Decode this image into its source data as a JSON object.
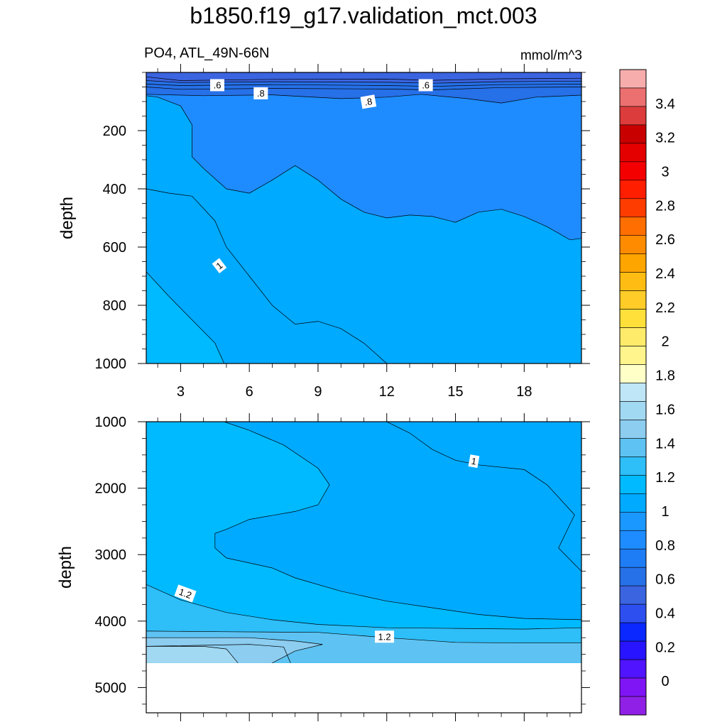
{
  "title": "b1850.f19_g17.validation_mct.003",
  "variable": "PO4, ATL_49N-66N",
  "units": "mmol/m^3",
  "chart_data": [
    {
      "type": "contour",
      "panel": "upper",
      "ylabel": "depth",
      "xticks": [
        "3",
        "6",
        "9",
        "12",
        "15",
        "18"
      ],
      "x_tick_values": [
        3,
        6,
        9,
        12,
        15,
        18
      ],
      "yticks": [
        "200",
        "400",
        "600",
        "800",
        "1000"
      ],
      "y_tick_values": [
        200,
        400,
        600,
        800,
        1000
      ],
      "xlim": [
        1.5,
        20.5
      ],
      "ylim": [
        0,
        1000
      ],
      "y_reversed": true,
      "contour_labels": [
        ".6",
        ".8",
        ".8",
        ".6",
        "1"
      ],
      "contour_lines": [
        [
          [
            1.5,
            15
          ],
          [
            3,
            28
          ],
          [
            7,
            24
          ],
          [
            12,
            23
          ],
          [
            14,
            27
          ],
          [
            17,
            22
          ],
          [
            20.5,
            20
          ]
        ],
        [
          [
            1.5,
            28
          ],
          [
            3,
            35
          ],
          [
            7,
            32
          ],
          [
            12,
            34
          ],
          [
            14,
            37
          ],
          [
            17,
            32
          ],
          [
            20.5,
            30
          ]
        ],
        [
          [
            1.5,
            40
          ],
          [
            3,
            45
          ],
          [
            7,
            42
          ],
          [
            12,
            45
          ],
          [
            14,
            48
          ],
          [
            17,
            42
          ],
          [
            20.5,
            40
          ]
        ],
        [
          [
            1.5,
            50
          ],
          [
            3,
            58
          ],
          [
            7,
            55
          ],
          [
            12,
            57
          ],
          [
            14,
            60
          ],
          [
            17,
            52
          ],
          [
            20.5,
            50
          ]
        ],
        [
          [
            1.5,
            75
          ],
          [
            4,
            80
          ],
          [
            7,
            77
          ],
          [
            10,
            90
          ],
          [
            12,
            85
          ],
          [
            13.5,
            75
          ],
          [
            15.5,
            90
          ],
          [
            17,
            105
          ],
          [
            18.5,
            85
          ],
          [
            20.5,
            78
          ]
        ],
        [
          [
            1.5,
            80
          ],
          [
            2,
            85
          ],
          [
            3,
            115
          ],
          [
            3.5,
            180
          ],
          [
            3.5,
            290
          ],
          [
            4,
            330
          ],
          [
            5,
            400
          ],
          [
            6,
            415
          ],
          [
            7,
            370
          ],
          [
            8,
            320
          ],
          [
            9,
            370
          ],
          [
            10,
            435
          ],
          [
            11,
            480
          ],
          [
            12,
            500
          ],
          [
            13,
            490
          ],
          [
            14,
            495
          ],
          [
            15,
            515
          ],
          [
            16,
            480
          ],
          [
            17,
            470
          ],
          [
            18,
            495
          ],
          [
            19,
            530
          ],
          [
            20,
            575
          ],
          [
            20.5,
            570
          ]
        ],
        [
          [
            1.5,
            400
          ],
          [
            2.5,
            415
          ],
          [
            3.5,
            425
          ],
          [
            4.5,
            510
          ],
          [
            5,
            600
          ],
          [
            6,
            700
          ],
          [
            7,
            800
          ],
          [
            8,
            865
          ],
          [
            9,
            855
          ],
          [
            10,
            880
          ],
          [
            11,
            930
          ],
          [
            12,
            1000
          ]
        ],
        [
          [
            1.5,
            685
          ],
          [
            2.5,
            770
          ],
          [
            3.5,
            850
          ],
          [
            4.5,
            930
          ],
          [
            4.9,
            1000
          ]
        ]
      ]
    },
    {
      "type": "contour",
      "panel": "lower",
      "ylabel": "depth",
      "yticks": [
        "1000",
        "2000",
        "3000",
        "4000",
        "5000"
      ],
      "y_tick_values": [
        1000,
        2000,
        3000,
        4000,
        5000
      ],
      "xlim": [
        1.5,
        20.5
      ],
      "ylim": [
        1000,
        5380
      ],
      "y_reversed": true,
      "data_bottom": 4630,
      "contour_labels": [
        "1",
        "1.2",
        "1.2"
      ],
      "contour_lines": [
        [
          [
            12,
            1000
          ],
          [
            13,
            1170
          ],
          [
            14,
            1420
          ],
          [
            15,
            1580
          ],
          [
            16,
            1650
          ],
          [
            18,
            1720
          ],
          [
            19,
            1950
          ],
          [
            20.2,
            2400
          ],
          [
            19.5,
            2900
          ],
          [
            20.5,
            3250
          ]
        ],
        [
          [
            4.9,
            1000
          ],
          [
            6,
            1130
          ],
          [
            7.5,
            1350
          ],
          [
            9,
            1700
          ],
          [
            9.5,
            1950
          ],
          [
            9,
            2250
          ],
          [
            8,
            2350
          ],
          [
            6,
            2470
          ],
          [
            5,
            2620
          ],
          [
            4.5,
            2680
          ],
          [
            4.5,
            2900
          ],
          [
            5,
            3050
          ],
          [
            7,
            3200
          ],
          [
            8,
            3350
          ],
          [
            10,
            3550
          ],
          [
            12,
            3700
          ],
          [
            14,
            3800
          ],
          [
            16,
            3900
          ],
          [
            18,
            3960
          ],
          [
            20.5,
            3980
          ]
        ],
        [
          [
            1.5,
            3450
          ],
          [
            3,
            3680
          ],
          [
            5,
            3870
          ],
          [
            7,
            3980
          ],
          [
            9,
            4050
          ],
          [
            12,
            4100
          ],
          [
            15,
            4110
          ],
          [
            18,
            4120
          ],
          [
            20.5,
            4100
          ]
        ],
        [
          [
            1.5,
            4150
          ],
          [
            5,
            4160
          ],
          [
            9,
            4170
          ],
          [
            12,
            4250
          ],
          [
            15,
            4320
          ],
          [
            18,
            4330
          ],
          [
            20.5,
            4330
          ]
        ],
        [
          [
            1.5,
            4250
          ],
          [
            6,
            4250
          ],
          [
            8,
            4300
          ],
          [
            9.2,
            4350
          ],
          [
            8,
            4450
          ],
          [
            7,
            4630
          ]
        ],
        [
          [
            1.5,
            4380
          ],
          [
            4,
            4380
          ],
          [
            5,
            4420
          ],
          [
            5.5,
            4630
          ]
        ],
        [
          [
            1.5,
            4380
          ],
          [
            6,
            4350
          ],
          [
            7.5,
            4390
          ],
          [
            7.8,
            4630
          ]
        ]
      ]
    }
  ],
  "colorbar": {
    "labels": [
      "3.4",
      "3.2",
      "3",
      "2.8",
      "2.6",
      "2.4",
      "2.2",
      "2",
      "1.8",
      "1.6",
      "1.4",
      "1.2",
      "1",
      "0.8",
      "0.6",
      "0.4",
      "0.2",
      "0"
    ],
    "label_values": [
      3.4,
      3.2,
      3.0,
      2.8,
      2.6,
      2.4,
      2.2,
      2.0,
      1.8,
      1.6,
      1.4,
      1.2,
      1.0,
      0.8,
      0.6,
      0.4,
      0.2,
      0.0
    ],
    "colors": [
      "#f8adad",
      "#ec7070",
      "#dc3c3c",
      "#c80000",
      "#e50000",
      "#f50000",
      "#ff1e00",
      "#ff3c00",
      "#ff6e00",
      "#ff8c00",
      "#ffa500",
      "#ffbd14",
      "#ffcc28",
      "#ffe03a",
      "#ffeb6a",
      "#fff58c",
      "#ffffc8",
      "#bee6f6",
      "#a2d9f2",
      "#8ccdf0",
      "#5ec3f2",
      "#2ebef8",
      "#00baff",
      "#00aaff",
      "#1a98ff",
      "#1e8cff",
      "#1e7cf5",
      "#2670e8",
      "#3a64e0",
      "#2d4ff0",
      "#0a28ff",
      "#2814ff",
      "#5014ff",
      "#7f14f5",
      "#9020e6"
    ]
  }
}
